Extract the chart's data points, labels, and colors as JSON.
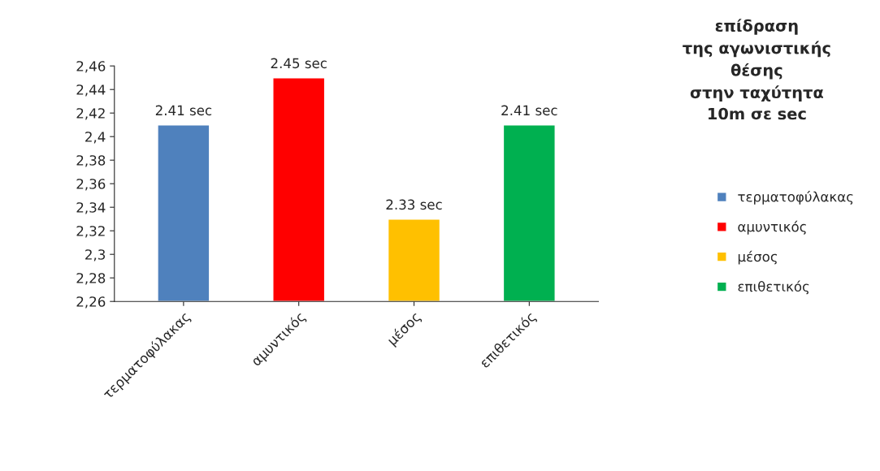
{
  "chart_data": {
    "type": "bar",
    "title": "επίδραση\nτης αγωνιστικής\nθέσης\nστην ταχύτητα\n10m σε sec",
    "categories": [
      "τερματοφύλακας",
      "αμυντικός",
      "μέσος",
      "επιθετικός"
    ],
    "series": [
      {
        "name": "τερματοφύλακας",
        "color": "#4f81bd",
        "values": [
          2.41,
          null,
          null,
          null
        ],
        "value_labels": [
          "2.41 sec",
          null,
          null,
          null
        ]
      },
      {
        "name": "αμυντικός",
        "color": "#ff0000",
        "values": [
          null,
          2.45,
          null,
          null
        ],
        "value_labels": [
          null,
          "2.45 sec",
          null,
          null
        ]
      },
      {
        "name": "μέσος",
        "color": "#ffc000",
        "values": [
          null,
          null,
          2.33,
          null
        ],
        "value_labels": [
          null,
          null,
          "2.33 sec",
          null
        ]
      },
      {
        "name": "επιθετικός",
        "color": "#00b050",
        "values": [
          null,
          null,
          null,
          2.41
        ],
        "value_labels": [
          null,
          null,
          null,
          "2.41 sec"
        ]
      }
    ],
    "ylim": [
      2.26,
      2.46
    ],
    "yticks": [
      {
        "value": 2.26,
        "label": "2,26"
      },
      {
        "value": 2.28,
        "label": "2,28"
      },
      {
        "value": 2.3,
        "label": "2,3"
      },
      {
        "value": 2.32,
        "label": "2,32"
      },
      {
        "value": 2.34,
        "label": "2,34"
      },
      {
        "value": 2.36,
        "label": "2,36"
      },
      {
        "value": 2.38,
        "label": "2,38"
      },
      {
        "value": 2.4,
        "label": "2,4"
      },
      {
        "value": 2.42,
        "label": "2,42"
      },
      {
        "value": 2.44,
        "label": "2,44"
      },
      {
        "value": 2.46,
        "label": "2,46"
      }
    ],
    "grid": false,
    "legend": "right"
  }
}
